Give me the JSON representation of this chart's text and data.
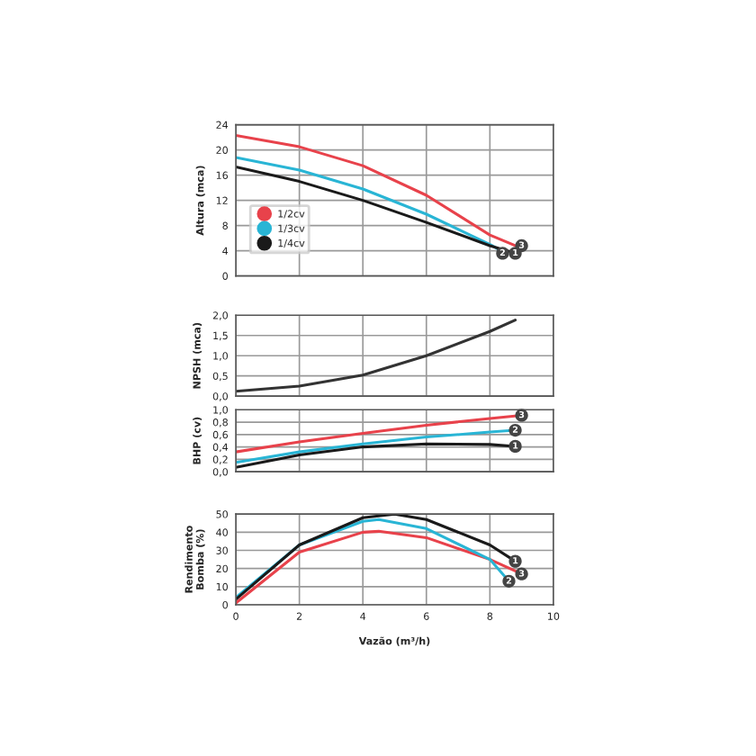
{
  "chart_data": [
    {
      "type": "line",
      "ylabel": "Altura (mca)",
      "xlim": [
        0,
        10
      ],
      "xticks": [
        0,
        2,
        4,
        6,
        8,
        10
      ],
      "ylim": [
        0,
        24
      ],
      "yticks": [
        0,
        4,
        8,
        12,
        16,
        20,
        24
      ],
      "grid": true,
      "tick_labels": "y",
      "legend": "lower left",
      "series": [
        {
          "name": "1/2cv",
          "color": "#e8424b",
          "x": [
            0,
            2,
            4,
            6,
            8,
            8.9
          ],
          "values": [
            22.3,
            20.5,
            17.5,
            12.8,
            6.5,
            4.6
          ]
        },
        {
          "name": "1/3cv",
          "color": "#29b5d5",
          "x": [
            0,
            2,
            4,
            6,
            8,
            8.5
          ],
          "values": [
            18.8,
            16.8,
            13.8,
            9.8,
            5,
            3.6
          ]
        },
        {
          "name": "1/4cv",
          "color": "#1a1a1a",
          "x": [
            0,
            2,
            4,
            6,
            8,
            8.8
          ],
          "values": [
            17.3,
            15,
            12,
            8.5,
            4.8,
            3.6
          ]
        }
      ],
      "annotations": [
        {
          "text": "3",
          "x": 9,
          "y": 4.8
        },
        {
          "text": "2",
          "x": 8.4,
          "y": 3.6
        },
        {
          "text": "1",
          "x": 8.8,
          "y": 3.6
        }
      ]
    },
    {
      "type": "line",
      "ylabel": "NPSH (mca)",
      "xlim": [
        0,
        10
      ],
      "xticks": [
        0,
        2,
        4,
        6,
        8,
        10
      ],
      "ylim": [
        0,
        2
      ],
      "yticks": [
        {
          "value": 0,
          "label": "0,0"
        },
        {
          "value": 0.5,
          "label": "0,5"
        },
        {
          "value": 1,
          "label": "1,0"
        },
        {
          "value": 1.5,
          "label": "1,5"
        },
        {
          "value": 2,
          "label": "2,0"
        }
      ],
      "grid": true,
      "tick_labels": "y",
      "series": [
        {
          "color": "#333333",
          "x": [
            0,
            2,
            4,
            6,
            8,
            8.8
          ],
          "values": [
            0.12,
            0.25,
            0.52,
            1.0,
            1.6,
            1.88
          ]
        }
      ]
    },
    {
      "type": "line",
      "ylabel": "BHP (cv)",
      "xlim": [
        0,
        10
      ],
      "xticks": [
        0,
        2,
        4,
        6,
        8,
        10
      ],
      "ylim": [
        0,
        1
      ],
      "yticks": [
        {
          "value": 0,
          "label": "0,0"
        },
        {
          "value": 0.2,
          "label": "0,2"
        },
        {
          "value": 0.4,
          "label": "0,4"
        },
        {
          "value": 0.6,
          "label": "0,6"
        },
        {
          "value": 0.8,
          "label": "0,8"
        },
        {
          "value": 1,
          "label": "1,0"
        }
      ],
      "grid": true,
      "tick_labels": "y",
      "series": [
        {
          "color": "#e8424b",
          "x": [
            0,
            2,
            4,
            6,
            8,
            9
          ],
          "values": [
            0.32,
            0.48,
            0.62,
            0.75,
            0.86,
            0.91
          ]
        },
        {
          "color": "#29b5d5",
          "x": [
            0,
            2,
            4,
            6,
            8,
            8.8
          ],
          "values": [
            0.15,
            0.32,
            0.45,
            0.56,
            0.64,
            0.67
          ]
        },
        {
          "color": "#1a1a1a",
          "x": [
            0,
            2,
            4,
            6,
            8,
            8.8
          ],
          "values": [
            0.07,
            0.27,
            0.4,
            0.45,
            0.44,
            0.41
          ]
        }
      ],
      "annotations": [
        {
          "text": "3",
          "x": 9,
          "y": 0.91
        },
        {
          "text": "2",
          "x": 8.8,
          "y": 0.67
        },
        {
          "text": "1",
          "x": 8.8,
          "y": 0.41
        }
      ]
    },
    {
      "type": "line",
      "ylabel": "Rendimento\nBomba (%)",
      "xlabel": "Vazão (m³/h)",
      "xlim": [
        0,
        10
      ],
      "xticks": [
        0,
        2,
        4,
        6,
        8,
        10
      ],
      "ylim": [
        0,
        50
      ],
      "yticks": [
        0,
        10,
        20,
        30,
        40,
        50
      ],
      "grid": true,
      "series": [
        {
          "color": "#e8424b",
          "x": [
            0,
            2,
            4,
            4.5,
            6,
            8,
            9
          ],
          "values": [
            1,
            29,
            40,
            40.5,
            37,
            25,
            17
          ]
        },
        {
          "color": "#29b5d5",
          "x": [
            0,
            2,
            4,
            4.5,
            6,
            8,
            8.6
          ],
          "values": [
            4,
            33,
            46,
            47,
            42,
            25,
            13
          ]
        },
        {
          "color": "#1a1a1a",
          "x": [
            0,
            2,
            4,
            5,
            6,
            8,
            8.8
          ],
          "values": [
            3,
            33,
            48,
            50,
            47,
            33,
            24
          ]
        }
      ],
      "annotations": [
        {
          "text": "1",
          "x": 8.8,
          "y": 24
        },
        {
          "text": "3",
          "x": 9,
          "y": 17
        },
        {
          "text": "2",
          "x": 8.6,
          "y": 13
        }
      ]
    }
  ]
}
